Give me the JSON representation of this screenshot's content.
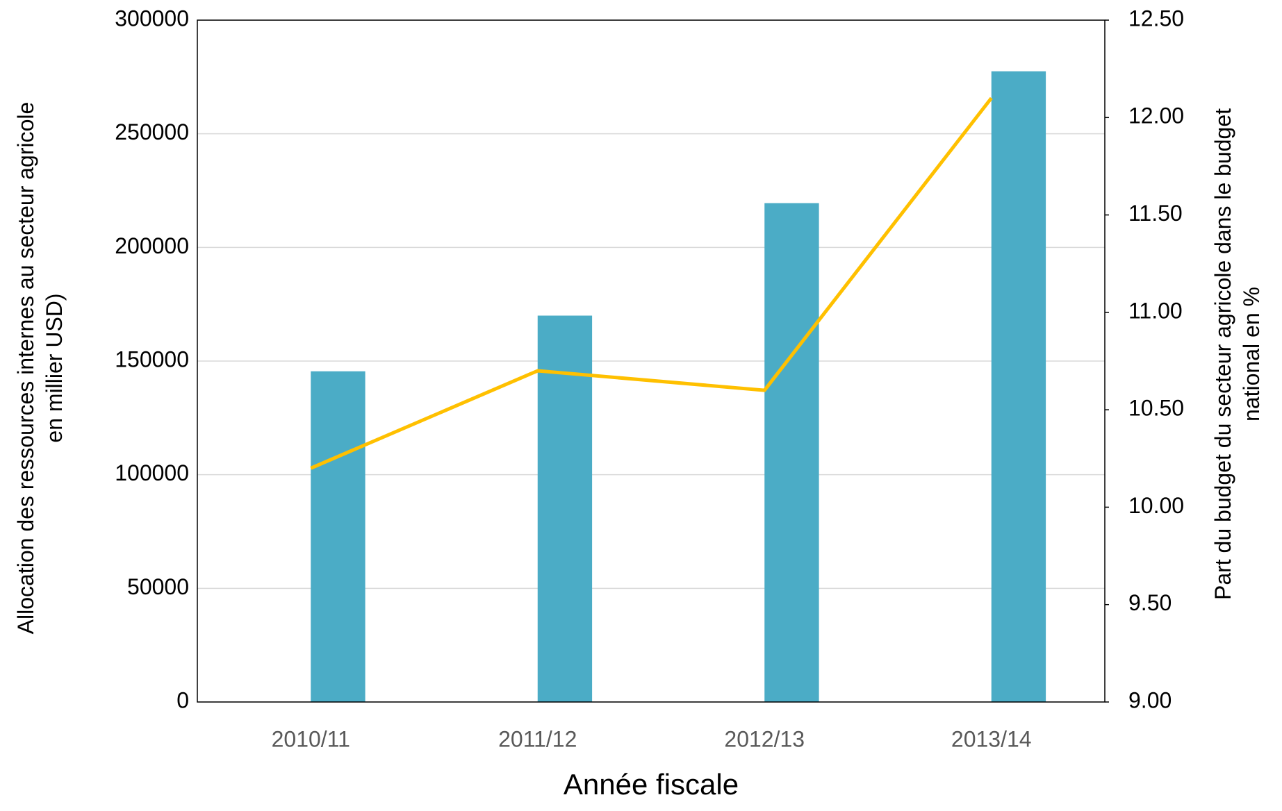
{
  "chart_data": {
    "type": "bar_line",
    "categories": [
      "2010/11",
      "2011/12",
      "2012/13",
      "2013/14"
    ],
    "series": [
      {
        "name": "Allocation",
        "type": "bar",
        "color": "#4bacc6",
        "values": [
          145500,
          170000,
          219500,
          277500
        ]
      },
      {
        "name": "Part",
        "type": "line",
        "axis": "y2",
        "color": "#ffc000",
        "values": [
          10.2,
          10.7,
          10.6,
          12.1
        ]
      }
    ],
    "ylim": [
      0,
      300000
    ],
    "yticks": [
      0,
      50000,
      100000,
      150000,
      200000,
      250000,
      300000
    ],
    "y2lim": [
      9,
      12.5
    ],
    "y2ticks": [
      {
        "value": 9,
        "label": "9.00"
      },
      {
        "value": 9.5,
        "label": "9.50"
      },
      {
        "value": 10,
        "label": "10.00"
      },
      {
        "value": 10.5,
        "label": "10.50"
      },
      {
        "value": 11,
        "label": "11.00"
      },
      {
        "value": 11.5,
        "label": "11.50"
      },
      {
        "value": 12,
        "label": "12.00"
      },
      {
        "value": 12.5,
        "label": "12.50"
      }
    ],
    "xlabel": "Année fiscale",
    "ylabel": [
      "Allocation des ressources internes au secteur agricole",
      "en millier USD)"
    ],
    "y2label": [
      "Part du budget du secteur agricole dans le budget",
      "national en %"
    ],
    "grid": true
  }
}
